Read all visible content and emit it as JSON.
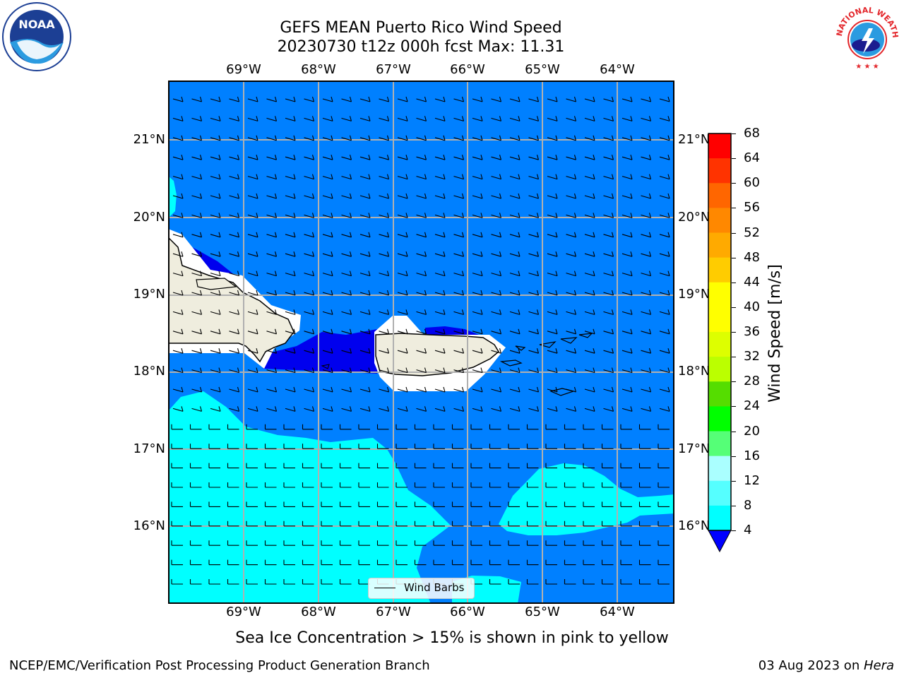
{
  "header": {
    "title_line1": "GEFS MEAN Puerto Rico Wind Speed",
    "title_line2": "20230730 t12z 000h fcst   Max: 11.31"
  },
  "logos": {
    "left": {
      "name": "noaa-logo",
      "text": "NOAA"
    },
    "right": {
      "name": "nws-logo",
      "text": "NATIONAL WEATHER SERVICE"
    }
  },
  "map": {
    "lon_ticks": [
      "69°W",
      "68°W",
      "67°W",
      "66°W",
      "65°W",
      "64°W"
    ],
    "lat_ticks": [
      "21°N",
      "20°N",
      "19°N",
      "18°N",
      "17°N",
      "16°N"
    ],
    "legend_label": "Wind Barbs",
    "colors": {
      "band_4_8": "#0080ff",
      "band_8_12": "#00ffff",
      "band_below_4": "#0000ee",
      "land": "#efedde",
      "no_data": "#ffffff",
      "grid": "#b0b0b0"
    }
  },
  "colorbar": {
    "title": "Wind Speed [m/s]",
    "levels": [
      "68",
      "64",
      "60",
      "56",
      "52",
      "48",
      "44",
      "40",
      "36",
      "32",
      "28",
      "24",
      "20",
      "16",
      "12",
      "8",
      "4"
    ],
    "band_colors": [
      "#ff0000",
      "#ff3300",
      "#ff6600",
      "#ff8800",
      "#ffaa00",
      "#ffcc00",
      "#ffff00",
      "#ffff00",
      "#ddff00",
      "#bbff00",
      "#55dd00",
      "#00ff00",
      "#55ff77",
      "#aaffff",
      "#55ffff",
      "#00ffff",
      "#0080ff"
    ],
    "under_color": "#0000ff"
  },
  "footer": {
    "note": "Sea Ice Concentration > 15% is shown in pink to yellow",
    "branch": "NCEP/EMC/Verification Post Processing Product Generation Branch",
    "date": "03 Aug 2023 on ",
    "host": "Hera"
  }
}
